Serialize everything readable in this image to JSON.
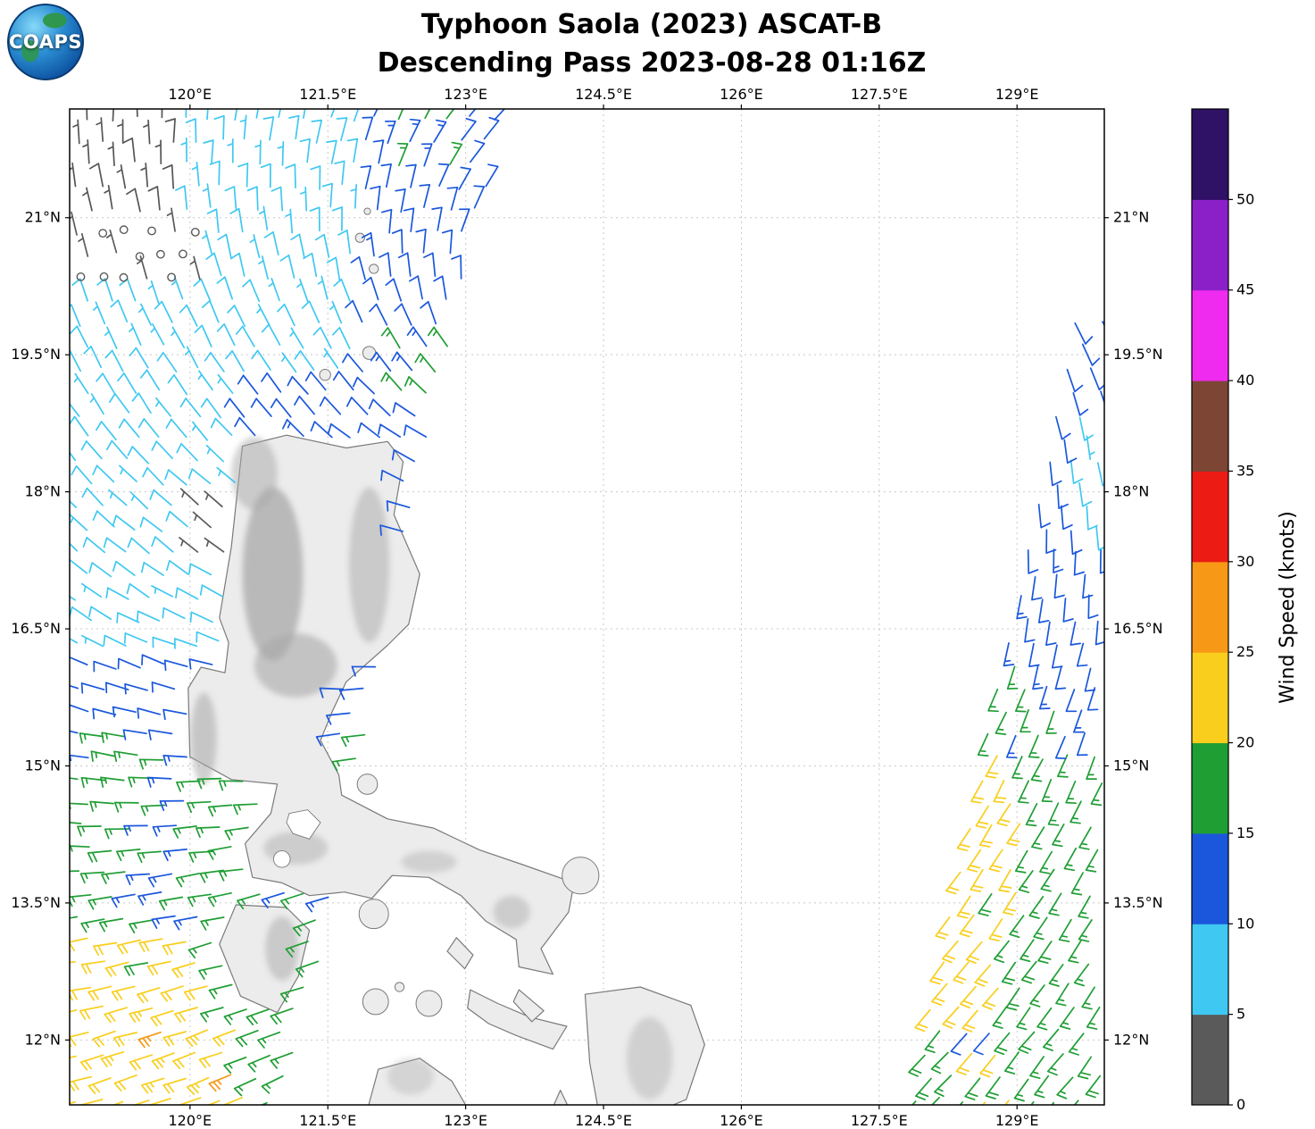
{
  "header": {
    "title_line1": "Typhoon Saola (2023) ASCAT-B",
    "title_line2": "Descending Pass 2023-08-28 01:16Z",
    "logo_text": "COAPS"
  },
  "chart_data": {
    "type": "vector-field-map",
    "title": "Typhoon Saola (2023) ASCAT-B",
    "subtitle": "Descending Pass 2023-08-28 01:16Z",
    "instrument": "ASCAT-B scatterometer wind barbs",
    "extent": {
      "lon_min": 118.69,
      "lon_max": 129.95,
      "lat_min": 11.29,
      "lat_max": 22.19
    },
    "x_axis": {
      "ticks": [
        120,
        121.5,
        123,
        124.5,
        126,
        127.5,
        129
      ],
      "tick_labels": [
        "120°E",
        "121.5°E",
        "123°E",
        "124.5°E",
        "126°E",
        "127.5°E",
        "129°E"
      ]
    },
    "y_axis": {
      "ticks": [
        21,
        19.5,
        18,
        16.5,
        15,
        13.5,
        12
      ],
      "tick_labels": [
        "21°N",
        "19.5°N",
        "18°N",
        "16.5°N",
        "15°N",
        "13.5°N",
        "12°N"
      ]
    },
    "colorbar": {
      "label": "Wind Speed (knots)",
      "min": 0,
      "max": 55,
      "step": 5,
      "tick_values": [
        0,
        5,
        10,
        15,
        20,
        25,
        30,
        35,
        40,
        45,
        50
      ],
      "tick_labels": [
        "0",
        "5",
        "10",
        "15",
        "20",
        "25",
        "30",
        "35",
        "40",
        "45",
        "50"
      ],
      "colors": [
        "#5A5A5A",
        "#3FC8F1",
        "#1A57DC",
        "#1F9E34",
        "#F9CE1C",
        "#F79817",
        "#EC1C14",
        "#7C4534",
        "#EF2BEF",
        "#8B20C9",
        "#2F1166"
      ]
    },
    "wind_field": {
      "center_lon": 124.2,
      "center_lat": 19.8,
      "inflow": 0.45,
      "monsoon_to": [
        0.707,
        0.707
      ],
      "monsoon_max": 1.1,
      "monsoon_lat_zero": 17,
      "monsoon_lat_span": 6
    },
    "barb_style": {
      "staff_len": 26,
      "full_len": 11,
      "half_len": 6,
      "spacing": 5,
      "feather_angle_deg": -110,
      "line_width": 1.7,
      "calm_radius": 4.2,
      "step_lon": 0.26,
      "step_lat": 0.25,
      "flag_color": "#555555"
    },
    "swaths": [
      {
        "name": "left",
        "lat_min": 11.34,
        "lat_max": 22.15,
        "west_base": 118.6,
        "west_slope": 0,
        "east_base": 121.05,
        "east_slope": 0.215,
        "default_speed": 10,
        "zones": [
          {
            "lat": [
              21.05,
              22.3
            ],
            "lon": [
              118.0,
              119.95
            ],
            "s": 7,
            "flag": true
          },
          {
            "lat": [
              20.15,
              21.05
            ],
            "lon": [
              118.0,
              120.2
            ],
            "s": 2.2
          },
          {
            "lat": [
              21.5,
              22.3
            ],
            "lon": [
              122.1,
              122.9
            ],
            "s": 15.5
          },
          {
            "lat": [
              18.9,
              19.65
            ],
            "lon": [
              122.25,
              123.1
            ],
            "s": 15.5
          },
          {
            "lat": [
              19.2,
              22.3
            ],
            "lon": [
              118.0,
              121.85
            ],
            "s": 8
          },
          {
            "lat": [
              19.2,
              22.3
            ],
            "lon": [
              121.85,
              124.0
            ],
            "s": 11.5
          },
          {
            "lat": [
              17.1,
              17.95
            ],
            "lon": [
              120.0,
              120.6
            ],
            "s": 4
          },
          {
            "lat": [
              16.2,
              19.2
            ],
            "lon": [
              118.0,
              120.55
            ],
            "s": 8
          },
          {
            "lat": [
              16.2,
              19.2
            ],
            "lon": [
              120.55,
              124.0
            ],
            "s": 11.5
          },
          {
            "lat": [
              15.35,
              16.2
            ],
            "lon": [
              118.0,
              124.0
            ],
            "s": 11.5
          },
          {
            "lat": [
              14.65,
              15.35
            ],
            "lon": [
              118.0,
              124.0
            ],
            "s": 15.5
          },
          {
            "lat": [
              13.3,
              14.65
            ],
            "lon": [
              118.0,
              119.25
            ],
            "s": 17
          },
          {
            "lat": [
              13.3,
              14.65
            ],
            "lon": [
              119.25,
              124.0
            ],
            "s": 15.5
          },
          {
            "lat": [
              12.35,
              13.3
            ],
            "lon": [
              118.0,
              120.2
            ],
            "s": 21
          },
          {
            "lat": [
              12.35,
              13.3
            ],
            "lon": [
              120.2,
              124.0
            ],
            "s": 16
          },
          {
            "lat": [
              11.95,
              12.18
            ],
            "lon": [
              119.5,
              119.85
            ],
            "s": 26
          },
          {
            "lat": [
              11.42,
              11.72
            ],
            "lon": [
              120.1,
              120.45
            ],
            "s": 26
          },
          {
            "lat": [
              11.0,
              12.35
            ],
            "lon": [
              118.0,
              120.6
            ],
            "s": 22
          },
          {
            "lat": [
              11.0,
              12.35
            ],
            "lon": [
              120.6,
              124.0
            ],
            "s": 17
          }
        ]
      },
      {
        "name": "right",
        "lat_min": 11.34,
        "lat_max": 19.95,
        "west_base": 127.8,
        "west_slope": 0.21,
        "east_base": 129.98,
        "east_slope": 0,
        "default_speed": 15,
        "zones": [
          {
            "lat": [
              19.0,
              20.1
            ],
            "lon": [
              127.0,
              130.0
            ],
            "s": 11.5
          },
          {
            "lat": [
              17.6,
              19.0
            ],
            "lon": [
              129.55,
              130.0
            ],
            "s": 8.5
          },
          {
            "lat": [
              17.6,
              19.0
            ],
            "lon": [
              127.0,
              130.0
            ],
            "s": 11.5
          },
          {
            "lat": [
              16.1,
              17.6
            ],
            "lon": [
              127.0,
              129.1
            ],
            "s": 15.5
          },
          {
            "lat": [
              16.1,
              17.6
            ],
            "lon": [
              129.1,
              130.0
            ],
            "s": 11.5
          },
          {
            "lat": [
              15.2,
              16.1
            ],
            "lon": [
              129.45,
              130.0
            ],
            "s": 12
          },
          {
            "lat": [
              15.2,
              16.1
            ],
            "lon": [
              127.0,
              130.0
            ],
            "s": 15.5
          },
          {
            "lat": [
              13.4,
              15.2
            ],
            "lon": [
              128.35,
              129.05
            ],
            "s": 21
          },
          {
            "lat": [
              13.4,
              15.2
            ],
            "lon": [
              127.0,
              130.0
            ],
            "s": 16.5
          },
          {
            "lat": [
              11.95,
              12.2
            ],
            "lon": [
              128.45,
              128.72
            ],
            "s": 11
          },
          {
            "lat": [
              12.2,
              13.4
            ],
            "lon": [
              128.05,
              128.85
            ],
            "s": 21
          },
          {
            "lat": [
              11.3,
              11.95
            ],
            "lon": [
              128.3,
              128.95
            ],
            "s": 20.5
          },
          {
            "lat": [
              11.0,
              13.4
            ],
            "lon": [
              127.0,
              130.0
            ],
            "s": 17
          }
        ]
      }
    ]
  },
  "map": {
    "land_color": "#ECECEC",
    "land_edge": "#7A7A7A",
    "grid_color": "#C8C8C8",
    "terrain_color": "#A8A8A8",
    "lake_color": "#FFFFFF",
    "land_polygons": [
      {
        "name": "luzon",
        "mask": true,
        "pts": [
          [
            120.57,
            18.5
          ],
          [
            121.05,
            18.62
          ],
          [
            121.7,
            18.48
          ],
          [
            122.15,
            18.55
          ],
          [
            122.32,
            18.33
          ],
          [
            122.22,
            17.75
          ],
          [
            122.5,
            17.1
          ],
          [
            122.38,
            16.55
          ],
          [
            122.15,
            16.32
          ],
          [
            121.7,
            15.92
          ],
          [
            121.55,
            15.6
          ],
          [
            121.42,
            15.28
          ],
          [
            121.62,
            14.9
          ],
          [
            121.65,
            14.68
          ],
          [
            122.15,
            14.42
          ],
          [
            122.65,
            14.32
          ],
          [
            123.15,
            14.08
          ],
          [
            123.62,
            13.92
          ],
          [
            124.18,
            13.72
          ],
          [
            124.12,
            13.4
          ],
          [
            123.82,
            13.0
          ],
          [
            123.95,
            12.72
          ],
          [
            123.58,
            12.8
          ],
          [
            123.55,
            13.1
          ],
          [
            123.22,
            13.3
          ],
          [
            122.95,
            13.58
          ],
          [
            122.6,
            13.78
          ],
          [
            122.2,
            13.8
          ],
          [
            121.98,
            13.55
          ],
          [
            121.68,
            13.62
          ],
          [
            121.3,
            13.58
          ],
          [
            121.0,
            13.72
          ],
          [
            120.68,
            13.78
          ],
          [
            120.6,
            14.15
          ],
          [
            120.88,
            14.48
          ],
          [
            120.95,
            14.8
          ],
          [
            120.45,
            14.85
          ],
          [
            120.0,
            15.1
          ],
          [
            119.98,
            15.85
          ],
          [
            120.12,
            16.08
          ],
          [
            120.38,
            16.02
          ],
          [
            120.42,
            16.35
          ],
          [
            120.32,
            16.62
          ],
          [
            120.45,
            17.4
          ],
          [
            120.52,
            18.05
          ]
        ]
      },
      {
        "name": "mindoro",
        "mask": true,
        "pts": [
          [
            120.5,
            13.48
          ],
          [
            121.05,
            13.45
          ],
          [
            121.3,
            13.2
          ],
          [
            121.18,
            12.7
          ],
          [
            120.95,
            12.3
          ],
          [
            120.55,
            12.48
          ],
          [
            120.32,
            13.05
          ]
        ]
      },
      {
        "name": "masbate",
        "mask": true,
        "pts": [
          [
            123.05,
            12.55
          ],
          [
            123.35,
            12.4
          ],
          [
            123.7,
            12.25
          ],
          [
            124.1,
            12.15
          ],
          [
            123.95,
            11.9
          ],
          [
            123.55,
            12.05
          ],
          [
            123.25,
            12.18
          ],
          [
            123.02,
            12.35
          ]
        ]
      },
      {
        "name": "ticao",
        "mask": false,
        "pts": [
          [
            123.58,
            12.55
          ],
          [
            123.85,
            12.32
          ],
          [
            123.72,
            12.2
          ],
          [
            123.52,
            12.42
          ]
        ]
      },
      {
        "name": "burias",
        "mask": false,
        "pts": [
          [
            122.9,
            13.12
          ],
          [
            123.08,
            12.93
          ],
          [
            122.99,
            12.78
          ],
          [
            122.8,
            12.97
          ]
        ]
      },
      {
        "name": "samar",
        "mask": true,
        "pts": [
          [
            124.3,
            12.5
          ],
          [
            124.9,
            12.58
          ],
          [
            125.45,
            12.38
          ],
          [
            125.6,
            11.95
          ],
          [
            125.4,
            11.35
          ],
          [
            125.05,
            11.2
          ],
          [
            124.45,
            11.2
          ],
          [
            124.35,
            11.75
          ]
        ]
      },
      {
        "name": "panay",
        "mask": true,
        "pts": [
          [
            121.92,
            11.2
          ],
          [
            122.05,
            11.68
          ],
          [
            122.5,
            11.8
          ],
          [
            122.85,
            11.55
          ],
          [
            123.05,
            11.2
          ]
        ]
      },
      {
        "name": "cebu-tip",
        "mask": false,
        "pts": [
          [
            123.92,
            11.2
          ],
          [
            124.03,
            11.45
          ],
          [
            124.15,
            11.2
          ]
        ]
      }
    ],
    "land_circles": [
      {
        "name": "marinduque",
        "c": [
          122.0,
          13.38
        ],
        "r": 0.16
      },
      {
        "name": "catanduanes",
        "c": [
          124.25,
          13.8
        ],
        "r": 0.2
      },
      {
        "name": "polillo",
        "c": [
          121.93,
          14.8
        ],
        "r": 0.11
      },
      {
        "name": "tablas",
        "c": [
          122.02,
          12.42
        ],
        "r": 0.14
      },
      {
        "name": "sibuyan",
        "c": [
          122.6,
          12.4
        ],
        "r": 0.14
      },
      {
        "name": "romblon",
        "c": [
          122.28,
          12.58
        ],
        "r": 0.05
      },
      {
        "name": "babuyan",
        "c": [
          121.95,
          19.52
        ],
        "r": 0.07
      },
      {
        "name": "calayan",
        "c": [
          121.47,
          19.28
        ],
        "r": 0.06
      },
      {
        "name": "batan",
        "c": [
          122.0,
          20.44
        ],
        "r": 0.05
      },
      {
        "name": "itbayat",
        "c": [
          121.85,
          20.78
        ],
        "r": 0.05
      },
      {
        "name": "mavulis",
        "c": [
          121.93,
          21.07
        ],
        "r": 0.035
      }
    ],
    "terrain_patches": [
      {
        "c": [
          120.9,
          17.1
        ],
        "rx": 0.33,
        "ry": 0.95,
        "o": 0.75
      },
      {
        "c": [
          121.15,
          16.1
        ],
        "rx": 0.45,
        "ry": 0.35,
        "o": 0.6
      },
      {
        "c": [
          121.95,
          17.2
        ],
        "rx": 0.22,
        "ry": 0.85,
        "o": 0.5
      },
      {
        "c": [
          120.7,
          18.2
        ],
        "rx": 0.25,
        "ry": 0.4,
        "o": 0.5
      },
      {
        "c": [
          120.15,
          15.3
        ],
        "rx": 0.14,
        "ry": 0.5,
        "o": 0.55
      },
      {
        "c": [
          121.15,
          14.1
        ],
        "rx": 0.35,
        "ry": 0.18,
        "o": 0.45
      },
      {
        "c": [
          122.6,
          13.95
        ],
        "rx": 0.3,
        "ry": 0.12,
        "o": 0.4
      },
      {
        "c": [
          123.5,
          13.4
        ],
        "rx": 0.2,
        "ry": 0.18,
        "o": 0.45
      },
      {
        "c": [
          121.0,
          13.0
        ],
        "rx": 0.18,
        "ry": 0.35,
        "o": 0.5
      },
      {
        "c": [
          125.0,
          11.8
        ],
        "rx": 0.25,
        "ry": 0.45,
        "o": 0.4
      },
      {
        "c": [
          122.4,
          11.6
        ],
        "rx": 0.25,
        "ry": 0.2,
        "o": 0.35
      }
    ],
    "lakes": [
      {
        "name": "laguna-de-bay",
        "pts": [
          [
            121.08,
            14.48
          ],
          [
            121.28,
            14.52
          ],
          [
            121.42,
            14.38
          ],
          [
            121.3,
            14.2
          ],
          [
            121.12,
            14.26
          ],
          [
            121.05,
            14.38
          ]
        ]
      },
      {
        "name": "taal-lake",
        "circle": [
          121.0,
          13.98
        ],
        "r": 0.09
      }
    ]
  }
}
